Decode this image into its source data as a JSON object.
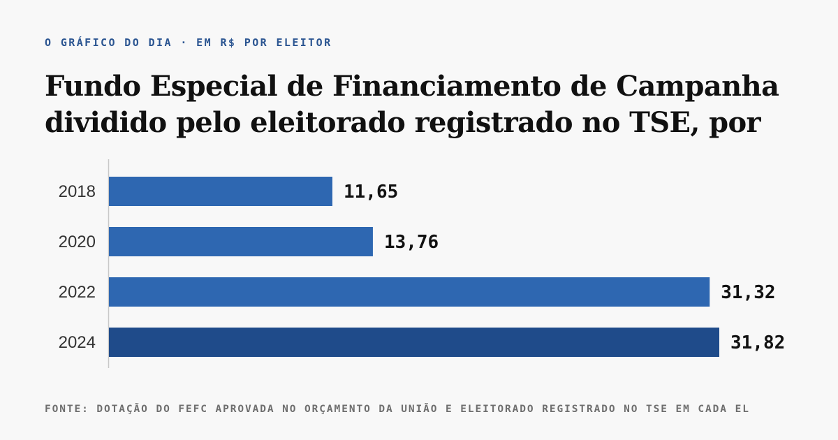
{
  "kicker": "O GRÁFICO DO DIA · EM R$ POR ELEITOR",
  "title_line1": "Fundo Especial de Financiamento de Campanha",
  "title_line2": "dividido pelo eleitorado registrado no TSE, por",
  "source": "FONTE: DOTAÇÃO DO FEFC APROVADA NO ORÇAMENTO DA UNIÃO E ELEITORADO REGISTRADO NO TSE EM CADA EL",
  "colors": {
    "bar": "#2e67b1",
    "bar_highlight": "#1f4b8a",
    "axis": "#c8c8c8",
    "label": "#333333",
    "value": "#111111"
  },
  "chart_data": {
    "type": "bar",
    "orientation": "horizontal",
    "categories": [
      "2018",
      "2020",
      "2022",
      "2024"
    ],
    "values": [
      11.65,
      13.76,
      31.32,
      31.82
    ],
    "value_labels": [
      "11,65",
      "13,76",
      "31,32",
      "31,82"
    ],
    "highlight_index": 3,
    "xlim": [
      0,
      31.82
    ],
    "grid": false,
    "legend": "none"
  }
}
